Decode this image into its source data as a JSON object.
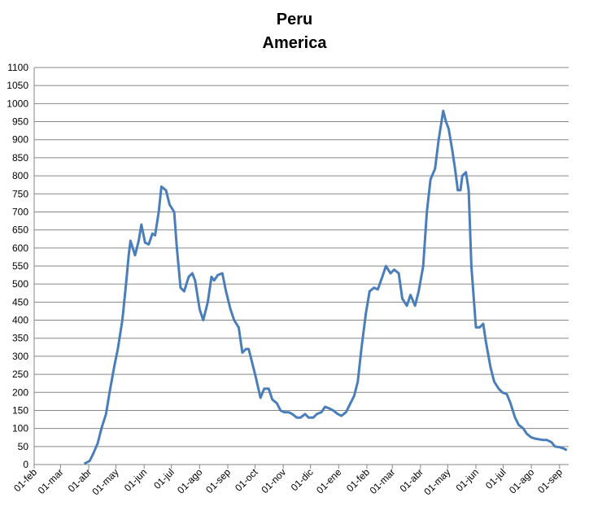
{
  "chart_data": {
    "type": "line",
    "title": "Peru",
    "subtitle": "America",
    "x": [
      55,
      61,
      65,
      70,
      74,
      79,
      83,
      88,
      92,
      97,
      101,
      104,
      106,
      111,
      115,
      118,
      122,
      126,
      130,
      133,
      137,
      140,
      145,
      149,
      154,
      157,
      161,
      165,
      170,
      174,
      177,
      182,
      186,
      191,
      195,
      198,
      202,
      207,
      211,
      216,
      220,
      225,
      229,
      233,
      236,
      240,
      244,
      249,
      253,
      258,
      262,
      267,
      271,
      275,
      280,
      284,
      289,
      293,
      298,
      302,
      307,
      311,
      316,
      320,
      325,
      329,
      334,
      338,
      343,
      347,
      352,
      356,
      360,
      365,
      369,
      374,
      378,
      383,
      387,
      392,
      396,
      401,
      405,
      410,
      414,
      419,
      423,
      428,
      432,
      436,
      441,
      445,
      450,
      453,
      456,
      460,
      463,
      466,
      469,
      471,
      475,
      478,
      481,
      486,
      490,
      494,
      497,
      502,
      506,
      511,
      515,
      520,
      524,
      529,
      533,
      538,
      542,
      547,
      551,
      555,
      560,
      564,
      569,
      573,
      578,
      582,
      586
    ],
    "values": [
      2,
      10,
      30,
      60,
      100,
      140,
      200,
      270,
      320,
      400,
      500,
      580,
      620,
      580,
      620,
      665,
      615,
      610,
      640,
      635,
      700,
      770,
      760,
      720,
      700,
      600,
      490,
      480,
      520,
      530,
      510,
      430,
      400,
      450,
      520,
      510,
      525,
      530,
      480,
      430,
      400,
      380,
      310,
      320,
      320,
      280,
      240,
      185,
      210,
      210,
      180,
      170,
      150,
      145,
      145,
      140,
      130,
      130,
      140,
      130,
      130,
      140,
      145,
      160,
      155,
      150,
      140,
      135,
      145,
      165,
      190,
      230,
      320,
      420,
      480,
      490,
      485,
      520,
      550,
      530,
      540,
      530,
      460,
      440,
      470,
      440,
      480,
      550,
      700,
      790,
      820,
      900,
      980,
      950,
      930,
      870,
      820,
      760,
      760,
      800,
      810,
      760,
      550,
      380,
      380,
      390,
      340,
      270,
      230,
      210,
      200,
      195,
      170,
      130,
      110,
      100,
      85,
      75,
      72,
      70,
      68,
      68,
      62,
      50,
      48,
      45,
      40
    ],
    "color": "#4a7ebb",
    "xlim": [
      0,
      588
    ],
    "xticks": [
      {
        "value": 0,
        "label": "01-feb"
      },
      {
        "value": 29,
        "label": "01-mar"
      },
      {
        "value": 60,
        "label": "01-abr"
      },
      {
        "value": 90,
        "label": "01-may"
      },
      {
        "value": 121,
        "label": "01-jun"
      },
      {
        "value": 151,
        "label": "01-jul"
      },
      {
        "value": 182,
        "label": "01-ago"
      },
      {
        "value": 213,
        "label": "01-sep"
      },
      {
        "value": 243,
        "label": "01-oct"
      },
      {
        "value": 274,
        "label": "01-nov"
      },
      {
        "value": 304,
        "label": "01-dic"
      },
      {
        "value": 335,
        "label": "01-ene"
      },
      {
        "value": 366,
        "label": "01-feb"
      },
      {
        "value": 394,
        "label": "01-mar"
      },
      {
        "value": 425,
        "label": "01-abr"
      },
      {
        "value": 455,
        "label": "01-may"
      },
      {
        "value": 486,
        "label": "01-jun"
      },
      {
        "value": 516,
        "label": "01-jul"
      },
      {
        "value": 547,
        "label": "01-ago"
      },
      {
        "value": 578,
        "label": "01-sep"
      }
    ],
    "ylim": [
      0,
      1100
    ],
    "yticks": [
      0,
      50,
      100,
      150,
      200,
      250,
      300,
      350,
      400,
      450,
      500,
      550,
      600,
      650,
      700,
      750,
      800,
      850,
      900,
      950,
      1000,
      1050,
      1100
    ],
    "grid": true
  }
}
